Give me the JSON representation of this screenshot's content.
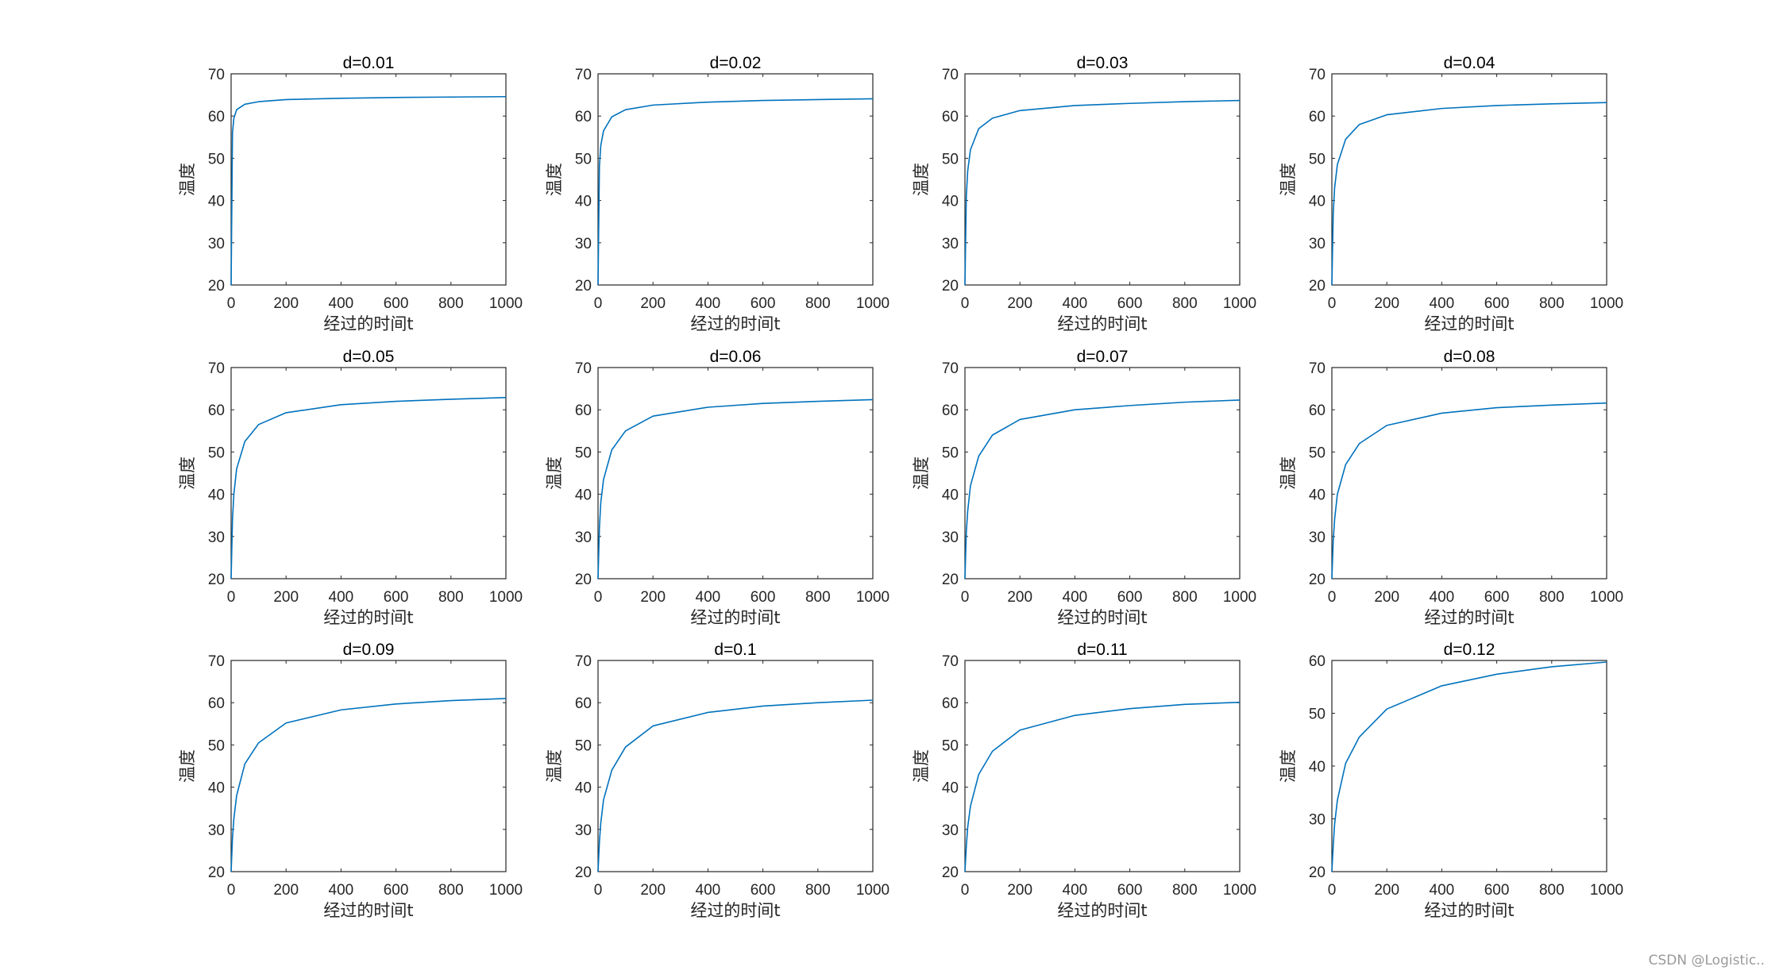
{
  "chart_data": [
    {
      "type": "line",
      "title": "d=0.01",
      "xlabel": "经过的时间t",
      "ylabel": "温度",
      "xlim": [
        0,
        1000
      ],
      "ylim": [
        20,
        70
      ],
      "xticks": [
        "0",
        "200",
        "400",
        "600",
        "800",
        "1000"
      ],
      "yticks": [
        "20",
        "30",
        "40",
        "50",
        "60",
        "70"
      ],
      "color": "#0072BD",
      "x": [
        0,
        5,
        10,
        20,
        50,
        100,
        200,
        400,
        600,
        800,
        1000
      ],
      "y": [
        20,
        56,
        59.5,
        61.5,
        62.8,
        63.4,
        63.9,
        64.2,
        64.4,
        64.5,
        64.6
      ]
    },
    {
      "type": "line",
      "title": "d=0.02",
      "xlabel": "经过的时间t",
      "ylabel": "温度",
      "xlim": [
        0,
        1000
      ],
      "ylim": [
        20,
        70
      ],
      "xticks": [
        "0",
        "200",
        "400",
        "600",
        "800",
        "1000"
      ],
      "yticks": [
        "20",
        "30",
        "40",
        "50",
        "60",
        "70"
      ],
      "color": "#0072BD",
      "x": [
        0,
        5,
        10,
        20,
        50,
        100,
        200,
        400,
        600,
        800,
        1000
      ],
      "y": [
        20,
        48,
        53,
        56.5,
        59.8,
        61.5,
        62.6,
        63.3,
        63.7,
        63.9,
        64.1
      ]
    },
    {
      "type": "line",
      "title": "d=0.03",
      "xlabel": "经过的时间t",
      "ylabel": "温度",
      "xlim": [
        0,
        1000
      ],
      "ylim": [
        20,
        70
      ],
      "xticks": [
        "0",
        "200",
        "400",
        "600",
        "800",
        "1000"
      ],
      "yticks": [
        "20",
        "30",
        "40",
        "50",
        "60",
        "70"
      ],
      "color": "#0072BD",
      "x": [
        0,
        5,
        10,
        20,
        50,
        100,
        200,
        400,
        600,
        800,
        1000
      ],
      "y": [
        20,
        41,
        47,
        52,
        57,
        59.5,
        61.3,
        62.5,
        63,
        63.4,
        63.7
      ]
    },
    {
      "type": "line",
      "title": "d=0.04",
      "xlabel": "经过的时间t",
      "ylabel": "温度",
      "xlim": [
        0,
        1000
      ],
      "ylim": [
        20,
        70
      ],
      "xticks": [
        "0",
        "200",
        "400",
        "600",
        "800",
        "1000"
      ],
      "yticks": [
        "20",
        "30",
        "40",
        "50",
        "60",
        "70"
      ],
      "color": "#0072BD",
      "x": [
        0,
        5,
        10,
        20,
        50,
        100,
        200,
        400,
        600,
        800,
        1000
      ],
      "y": [
        20,
        37,
        43,
        48.5,
        54.5,
        58,
        60.3,
        61.8,
        62.5,
        62.9,
        63.2
      ]
    },
    {
      "type": "line",
      "title": "d=0.05",
      "xlabel": "经过的时间t",
      "ylabel": "温度",
      "xlim": [
        0,
        1000
      ],
      "ylim": [
        20,
        70
      ],
      "xticks": [
        "0",
        "200",
        "400",
        "600",
        "800",
        "1000"
      ],
      "yticks": [
        "20",
        "30",
        "40",
        "50",
        "60",
        "70"
      ],
      "color": "#0072BD",
      "x": [
        0,
        5,
        10,
        20,
        50,
        100,
        200,
        400,
        600,
        800,
        1000
      ],
      "y": [
        20,
        34,
        40,
        46,
        52.5,
        56.5,
        59.3,
        61.2,
        62,
        62.5,
        62.9
      ]
    },
    {
      "type": "line",
      "title": "d=0.06",
      "xlabel": "经过的时间t",
      "ylabel": "温度",
      "xlim": [
        0,
        1000
      ],
      "ylim": [
        20,
        70
      ],
      "xticks": [
        "0",
        "200",
        "400",
        "600",
        "800",
        "1000"
      ],
      "yticks": [
        "20",
        "30",
        "40",
        "50",
        "60",
        "70"
      ],
      "color": "#0072BD",
      "x": [
        0,
        5,
        10,
        20,
        50,
        100,
        200,
        400,
        600,
        800,
        1000
      ],
      "y": [
        20,
        32,
        38,
        43.5,
        50.5,
        55,
        58.5,
        60.6,
        61.5,
        62,
        62.4
      ]
    },
    {
      "type": "line",
      "title": "d=0.07",
      "xlabel": "经过的时间t",
      "ylabel": "温度",
      "xlim": [
        0,
        1000
      ],
      "ylim": [
        20,
        70
      ],
      "xticks": [
        "0",
        "200",
        "400",
        "600",
        "800",
        "1000"
      ],
      "yticks": [
        "20",
        "30",
        "40",
        "50",
        "60",
        "70"
      ],
      "color": "#0072BD",
      "x": [
        0,
        5,
        10,
        20,
        50,
        100,
        200,
        400,
        600,
        800,
        1000
      ],
      "y": [
        20,
        31,
        36,
        42,
        49,
        54,
        57.7,
        60,
        61,
        61.8,
        62.3
      ]
    },
    {
      "type": "line",
      "title": "d=0.08",
      "xlabel": "经过的时间t",
      "ylabel": "温度",
      "xlim": [
        0,
        1000
      ],
      "ylim": [
        20,
        70
      ],
      "xticks": [
        "0",
        "200",
        "400",
        "600",
        "800",
        "1000"
      ],
      "yticks": [
        "20",
        "30",
        "40",
        "50",
        "60",
        "70"
      ],
      "color": "#0072BD",
      "x": [
        0,
        5,
        10,
        20,
        50,
        100,
        200,
        400,
        600,
        800,
        1000
      ],
      "y": [
        20,
        29,
        34,
        40,
        47,
        52,
        56.3,
        59.2,
        60.5,
        61.1,
        61.6
      ]
    },
    {
      "type": "line",
      "title": "d=0.09",
      "xlabel": "经过的时间t",
      "ylabel": "温度",
      "xlim": [
        0,
        1000
      ],
      "ylim": [
        20,
        70
      ],
      "xticks": [
        "0",
        "200",
        "400",
        "600",
        "800",
        "1000"
      ],
      "yticks": [
        "20",
        "30",
        "40",
        "50",
        "60",
        "70"
      ],
      "color": "#0072BD",
      "x": [
        0,
        5,
        10,
        20,
        50,
        100,
        200,
        400,
        600,
        800,
        1000
      ],
      "y": [
        20,
        28,
        32.5,
        38,
        45.5,
        50.5,
        55.2,
        58.3,
        59.7,
        60.5,
        61
      ]
    },
    {
      "type": "line",
      "title": "d=0.1",
      "xlabel": "经过的时间t",
      "ylabel": "温度",
      "xlim": [
        0,
        1000
      ],
      "ylim": [
        20,
        70
      ],
      "xticks": [
        "0",
        "200",
        "400",
        "600",
        "800",
        "1000"
      ],
      "yticks": [
        "20",
        "30",
        "40",
        "50",
        "60",
        "70"
      ],
      "color": "#0072BD",
      "x": [
        0,
        5,
        10,
        20,
        50,
        100,
        200,
        400,
        600,
        800,
        1000
      ],
      "y": [
        20,
        27,
        31.5,
        37,
        44,
        49.5,
        54.5,
        57.7,
        59.2,
        60,
        60.6
      ]
    },
    {
      "type": "line",
      "title": "d=0.11",
      "xlabel": "经过的时间t",
      "ylabel": "温度",
      "xlim": [
        0,
        1000
      ],
      "ylim": [
        20,
        70
      ],
      "xticks": [
        "0",
        "200",
        "400",
        "600",
        "800",
        "1000"
      ],
      "yticks": [
        "20",
        "30",
        "40",
        "50",
        "60",
        "70"
      ],
      "color": "#0072BD",
      "x": [
        0,
        5,
        10,
        20,
        50,
        100,
        200,
        400,
        600,
        800,
        1000
      ],
      "y": [
        20,
        26,
        30.5,
        35.5,
        43,
        48.5,
        53.5,
        57,
        58.6,
        59.6,
        60.1
      ]
    },
    {
      "type": "line",
      "title": "d=0.12",
      "xlabel": "经过的时间t",
      "ylabel": "温度",
      "xlim": [
        0,
        1000
      ],
      "ylim": [
        20,
        60
      ],
      "xticks": [
        "0",
        "200",
        "400",
        "600",
        "800",
        "1000"
      ],
      "yticks": [
        "20",
        "30",
        "40",
        "50",
        "60"
      ],
      "color": "#0072BD",
      "x": [
        0,
        5,
        10,
        20,
        50,
        100,
        200,
        400,
        600,
        800,
        1000
      ],
      "y": [
        20,
        25,
        29,
        33.5,
        40.5,
        45.5,
        50.8,
        55.2,
        57.4,
        58.8,
        59.7
      ]
    }
  ],
  "watermark": "CSDN @Logistic.."
}
